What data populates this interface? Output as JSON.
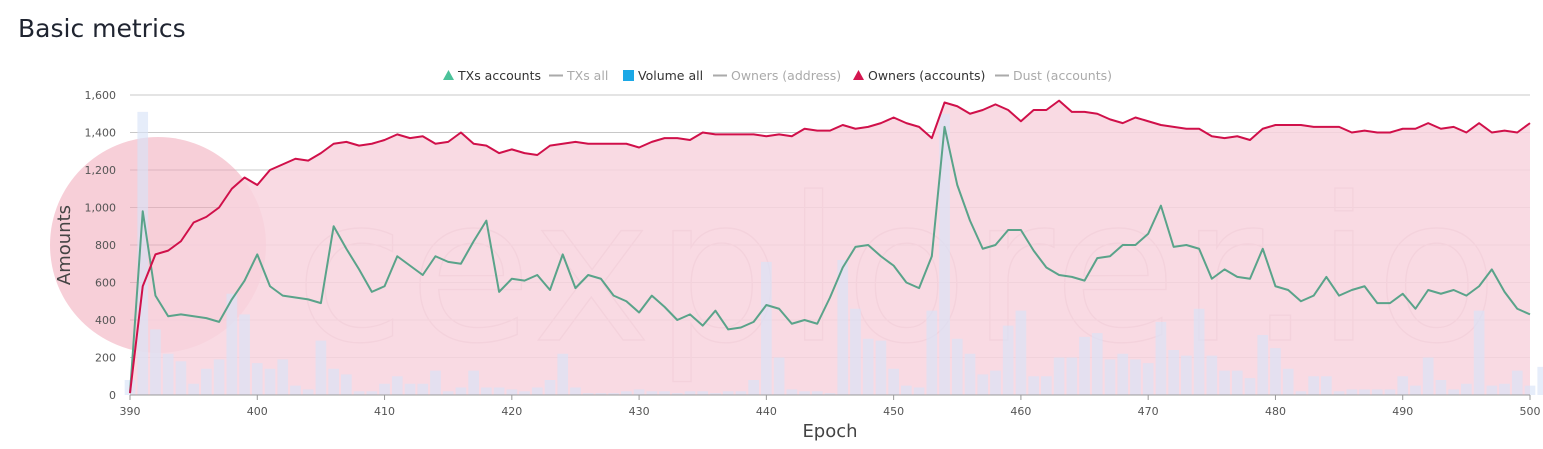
{
  "page": {
    "title": "Basic metrics"
  },
  "chart_data": {
    "type": "line",
    "xlabel": "Epoch",
    "ylabel": "Amounts",
    "xlim": [
      390,
      500
    ],
    "ylim": [
      0,
      1600
    ],
    "xticks": [
      390,
      400,
      410,
      420,
      430,
      440,
      450,
      460,
      470,
      480,
      490,
      500
    ],
    "yticks": [
      0,
      200,
      400,
      600,
      800,
      1000,
      1200,
      1400,
      1600
    ],
    "ytick_labels": [
      "0",
      "200",
      "400",
      "600",
      "800",
      "1,000",
      "1,200",
      "1,400",
      "1,600"
    ],
    "grid": true,
    "legend_position": "top-center",
    "watermark": "cexplorer.io",
    "legend": [
      {
        "name": "TXs accounts",
        "color": "#4bc29a",
        "marker": "triangle",
        "active": true
      },
      {
        "name": "TXs all",
        "color": "#aaaaaa",
        "marker": "line",
        "active": false
      },
      {
        "name": "Volume all",
        "color": "#1ba8e6",
        "marker": "square",
        "active": true
      },
      {
        "name": "Owners (address)",
        "color": "#aaaaaa",
        "marker": "line",
        "active": false
      },
      {
        "name": "Owners (accounts)",
        "color": "#d4164f",
        "marker": "triangle",
        "active": true
      },
      {
        "name": "Dust (accounts)",
        "color": "#aaaaaa",
        "marker": "line",
        "active": false
      }
    ],
    "series": [
      {
        "name": "Owners (accounts)",
        "type": "area",
        "color": "#d0104a",
        "fill": "#f8d4de",
        "values": [
          10,
          580,
          750,
          770,
          820,
          920,
          950,
          1000,
          1100,
          1160,
          1120,
          1200,
          1230,
          1260,
          1250,
          1290,
          1340,
          1350,
          1330,
          1340,
          1360,
          1390,
          1370,
          1380,
          1340,
          1350,
          1400,
          1340,
          1330,
          1290,
          1310,
          1290,
          1280,
          1330,
          1340,
          1350,
          1340,
          1340,
          1340,
          1340,
          1320,
          1350,
          1370,
          1370,
          1360,
          1400,
          1390,
          1390,
          1390,
          1390,
          1380,
          1390,
          1380,
          1420,
          1410,
          1410,
          1440,
          1420,
          1430,
          1450,
          1480,
          1450,
          1430,
          1370,
          1560,
          1540,
          1500,
          1520,
          1550,
          1520,
          1460,
          1520,
          1520,
          1570,
          1510,
          1510,
          1500,
          1470,
          1450,
          1480,
          1460,
          1440,
          1430,
          1420,
          1420,
          1380,
          1370,
          1380,
          1360,
          1420,
          1440,
          1440,
          1440,
          1430,
          1430,
          1430,
          1400,
          1410,
          1400,
          1400,
          1420,
          1420,
          1450,
          1420,
          1430,
          1400,
          1450,
          1400,
          1410,
          1400,
          1450
        ]
      },
      {
        "name": "TXs accounts",
        "type": "line",
        "color": "#5aa38a",
        "values": [
          10,
          980,
          530,
          420,
          430,
          420,
          410,
          390,
          510,
          610,
          750,
          580,
          530,
          520,
          510,
          490,
          900,
          780,
          670,
          550,
          580,
          740,
          690,
          640,
          740,
          710,
          700,
          820,
          930,
          550,
          620,
          610,
          640,
          560,
          750,
          570,
          640,
          620,
          530,
          500,
          440,
          530,
          470,
          400,
          430,
          370,
          450,
          350,
          360,
          390,
          480,
          460,
          380,
          400,
          380,
          520,
          680,
          790,
          800,
          740,
          690,
          600,
          570,
          740,
          1430,
          1120,
          930,
          780,
          800,
          880,
          880,
          770,
          680,
          640,
          630,
          610,
          730,
          740,
          800,
          800,
          860,
          1010,
          790,
          800,
          780,
          620,
          670,
          630,
          620,
          780,
          580,
          560,
          500,
          530,
          630,
          530,
          560,
          580,
          490,
          490,
          540,
          460,
          560,
          540,
          560,
          530,
          580,
          670,
          550,
          460,
          430
        ]
      },
      {
        "name": "Volume all",
        "type": "bar",
        "color": "#d9e3f7",
        "values": [
          80,
          1510,
          350,
          220,
          180,
          60,
          140,
          190,
          540,
          430,
          170,
          140,
          190,
          50,
          30,
          290,
          140,
          110,
          20,
          20,
          60,
          100,
          60,
          60,
          130,
          20,
          40,
          130,
          40,
          40,
          30,
          20,
          40,
          80,
          220,
          40,
          10,
          10,
          10,
          20,
          30,
          20,
          20,
          10,
          20,
          20,
          10,
          20,
          20,
          80,
          710,
          200,
          30,
          20,
          20,
          10,
          720,
          460,
          300,
          290,
          140,
          50,
          40,
          450,
          1500,
          300,
          220,
          110,
          130,
          370,
          450,
          100,
          100,
          200,
          200,
          310,
          330,
          190,
          220,
          190,
          170,
          390,
          240,
          210,
          460,
          210,
          130,
          130,
          90,
          320,
          250,
          140,
          20,
          100,
          100,
          20,
          30,
          30,
          30,
          30,
          100,
          50,
          200,
          80,
          30,
          60,
          450,
          50,
          60,
          130,
          50,
          150
        ]
      }
    ]
  }
}
